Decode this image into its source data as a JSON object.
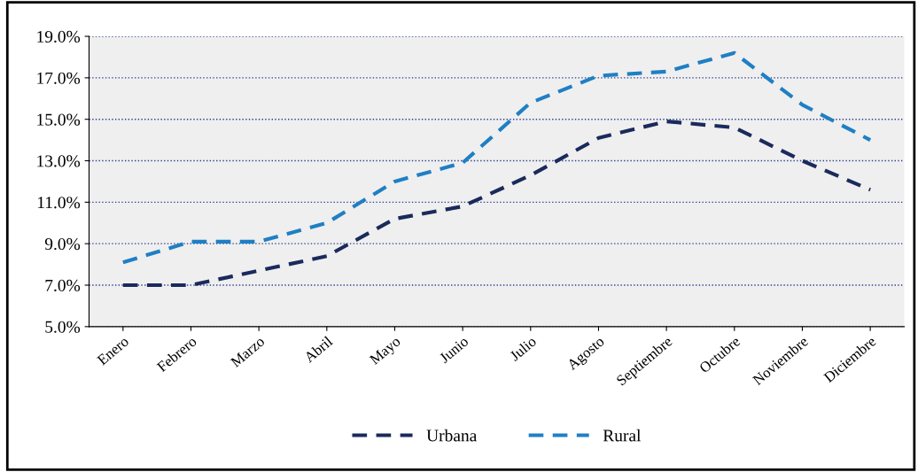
{
  "chart_data": {
    "type": "line",
    "categories": [
      "Enero",
      "Febrero",
      "Marzo",
      "Abril",
      "Mayo",
      "Junio",
      "Julio",
      "Agosto",
      "Septiembre",
      "Octubre",
      "Noviembre",
      "Diciembre"
    ],
    "series": [
      {
        "name": "Urbana",
        "color": "#1b2a5c",
        "values": [
          7.0,
          7.0,
          7.7,
          8.4,
          10.2,
          10.8,
          12.3,
          14.1,
          14.9,
          14.6,
          13.0,
          11.6
        ]
      },
      {
        "name": "Rural",
        "color": "#1f7fc4",
        "values": [
          8.1,
          9.1,
          9.1,
          10.0,
          12.0,
          12.9,
          15.8,
          17.1,
          17.3,
          18.2,
          15.7,
          14.0
        ]
      }
    ],
    "ylim": [
      5,
      19
    ],
    "yticks": [
      {
        "value": 5,
        "label": "5.0%"
      },
      {
        "value": 7,
        "label": "7.0%"
      },
      {
        "value": 9,
        "label": "9.0%"
      },
      {
        "value": 11,
        "label": "11.0%"
      },
      {
        "value": 13,
        "label": "13.0%"
      },
      {
        "value": 15,
        "label": "15.0%"
      },
      {
        "value": 17,
        "label": "17.0%"
      },
      {
        "value": 19,
        "label": "19.0%"
      }
    ],
    "grid": "y",
    "legend": "bottom",
    "line_style": "dashed",
    "marker": "none"
  }
}
